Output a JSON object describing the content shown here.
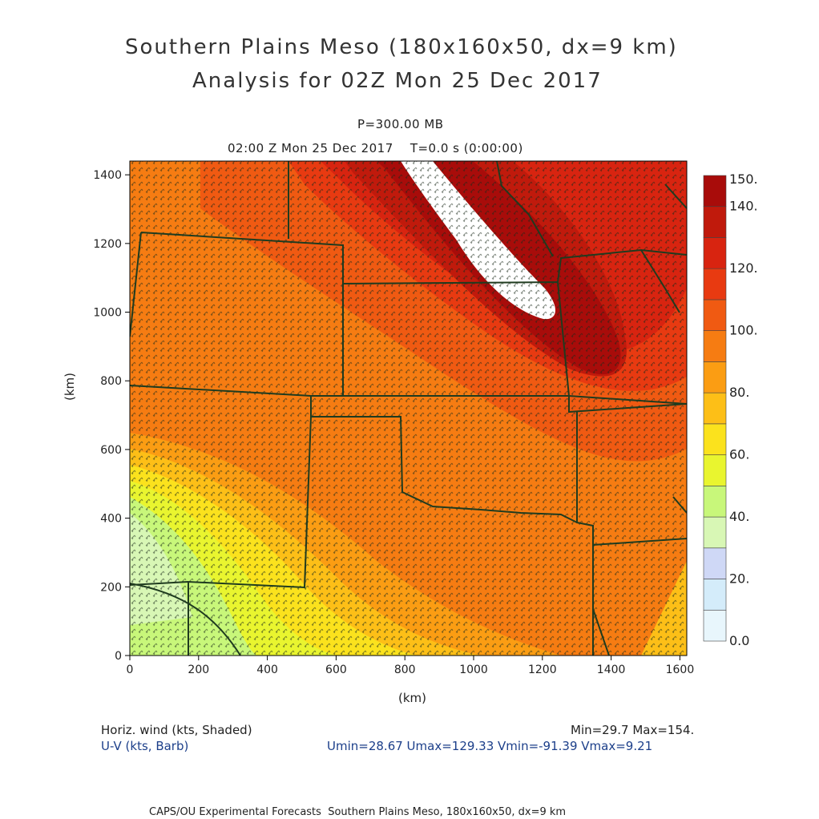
{
  "header": {
    "title_line1": "Southern Plains Meso (180x160x50, dx=9 km)",
    "title_line2": "Analysis for 02Z Mon 25 Dec 2017",
    "level": "P=300.00 MB",
    "time": "02:00 Z Mon 25 Dec 2017    T=0.0 s (0:00:00)"
  },
  "axes": {
    "x_ticks": [
      "0",
      "200",
      "400",
      "600",
      "800",
      "1000",
      "1200",
      "1400",
      "1600"
    ],
    "y_ticks": [
      "0",
      "200",
      "400",
      "600",
      "800",
      "1000",
      "1200",
      "1400"
    ],
    "xlabel": "(km)",
    "ylabel": "(km)",
    "xlim": [
      0,
      1620
    ],
    "ylim": [
      0,
      1440
    ]
  },
  "colorbar": {
    "labels": [
      "0.0",
      "20.",
      "40.",
      "60.",
      "80.",
      "100.",
      "120.",
      "140.",
      "150."
    ],
    "colors": [
      "#e8f6fc",
      "#d4ecfa",
      "#cfd8f6",
      "#d8f7b5",
      "#c8f77a",
      "#e9f52f",
      "#fbe21d",
      "#fdbf17",
      "#fb9d13",
      "#f67c12",
      "#f05a12",
      "#e83a11",
      "#d82410",
      "#c01a0c",
      "#a80c0a"
    ]
  },
  "legend": {
    "field1": "Horiz. wind (kts, Shaded)",
    "field2": "U-V (kts, Barb)",
    "minmax": "Min=29.7 Max=154.",
    "uv_stats": "Umin=28.67 Umax=129.33 Vmin=-91.39 Vmax=9.21"
  },
  "footer": {
    "credit": "CAPS/OU Experimental Forecasts  Southern Plains Meso, 180x160x50, dx=9 km"
  },
  "map": {
    "field": "Horiz. wind",
    "units": "kts"
  }
}
